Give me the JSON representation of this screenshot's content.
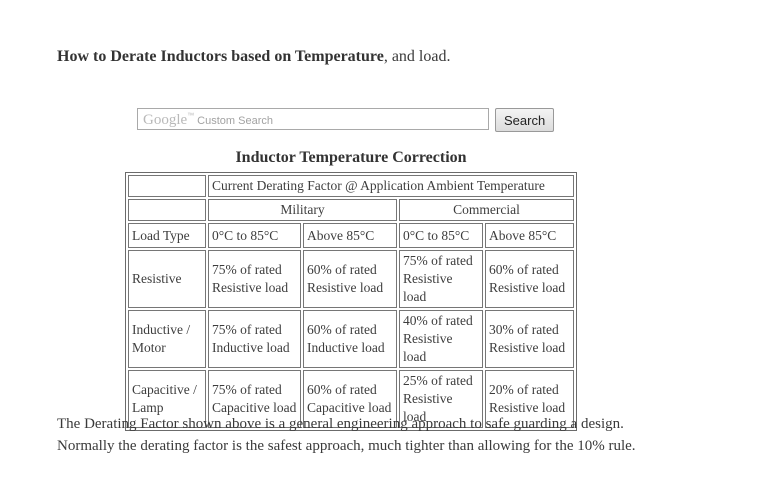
{
  "header": {
    "title_bold": "How to Derate Inductors based on Temperature",
    "title_rest": ", and load."
  },
  "search": {
    "brand": "Google",
    "trademark": "™",
    "watermark": "Custom Search",
    "input_value": "",
    "button_label": "Search"
  },
  "table": {
    "title": "Inductor Temperature Correction",
    "header_span": "Current Derating Factor @ Application Ambient Temperature",
    "group_headers": [
      "Military",
      "Commercial"
    ],
    "col_headers": [
      "Load Type",
      "0°C to 85°C",
      "Above 85°C",
      "0°C to 85°C",
      "Above 85°C"
    ],
    "rows": [
      {
        "label": "Resistive",
        "cells": [
          "75% of rated Resistive load",
          "60% of rated Resistive load",
          "75% of rated Resistive load",
          "60% of rated Resistive load"
        ]
      },
      {
        "label": "Inductive / Motor",
        "cells": [
          "75% of rated Inductive load",
          "60% of rated Inductive load",
          "40% of rated Resistive load",
          "30% of rated Resistive load"
        ]
      },
      {
        "label": "Capacitive / Lamp",
        "cells": [
          "75% of rated Capacitive load",
          "60% of rated Capacitive load",
          "25% of rated Resistive load",
          "20% of rated Resistive load"
        ]
      }
    ]
  },
  "footer": {
    "line1": "The Derating Factor shown above is a general engineering approach to safe guarding a design.",
    "line2": "Normally the derating factor is the safest approach, much tighter than allowing for the 10% rule."
  },
  "colors": {
    "text": "#3d3d3d",
    "table_border": "#6b6b6b",
    "watermark_gray": "#b3b3b3",
    "button_background": "#e6e6e6"
  }
}
